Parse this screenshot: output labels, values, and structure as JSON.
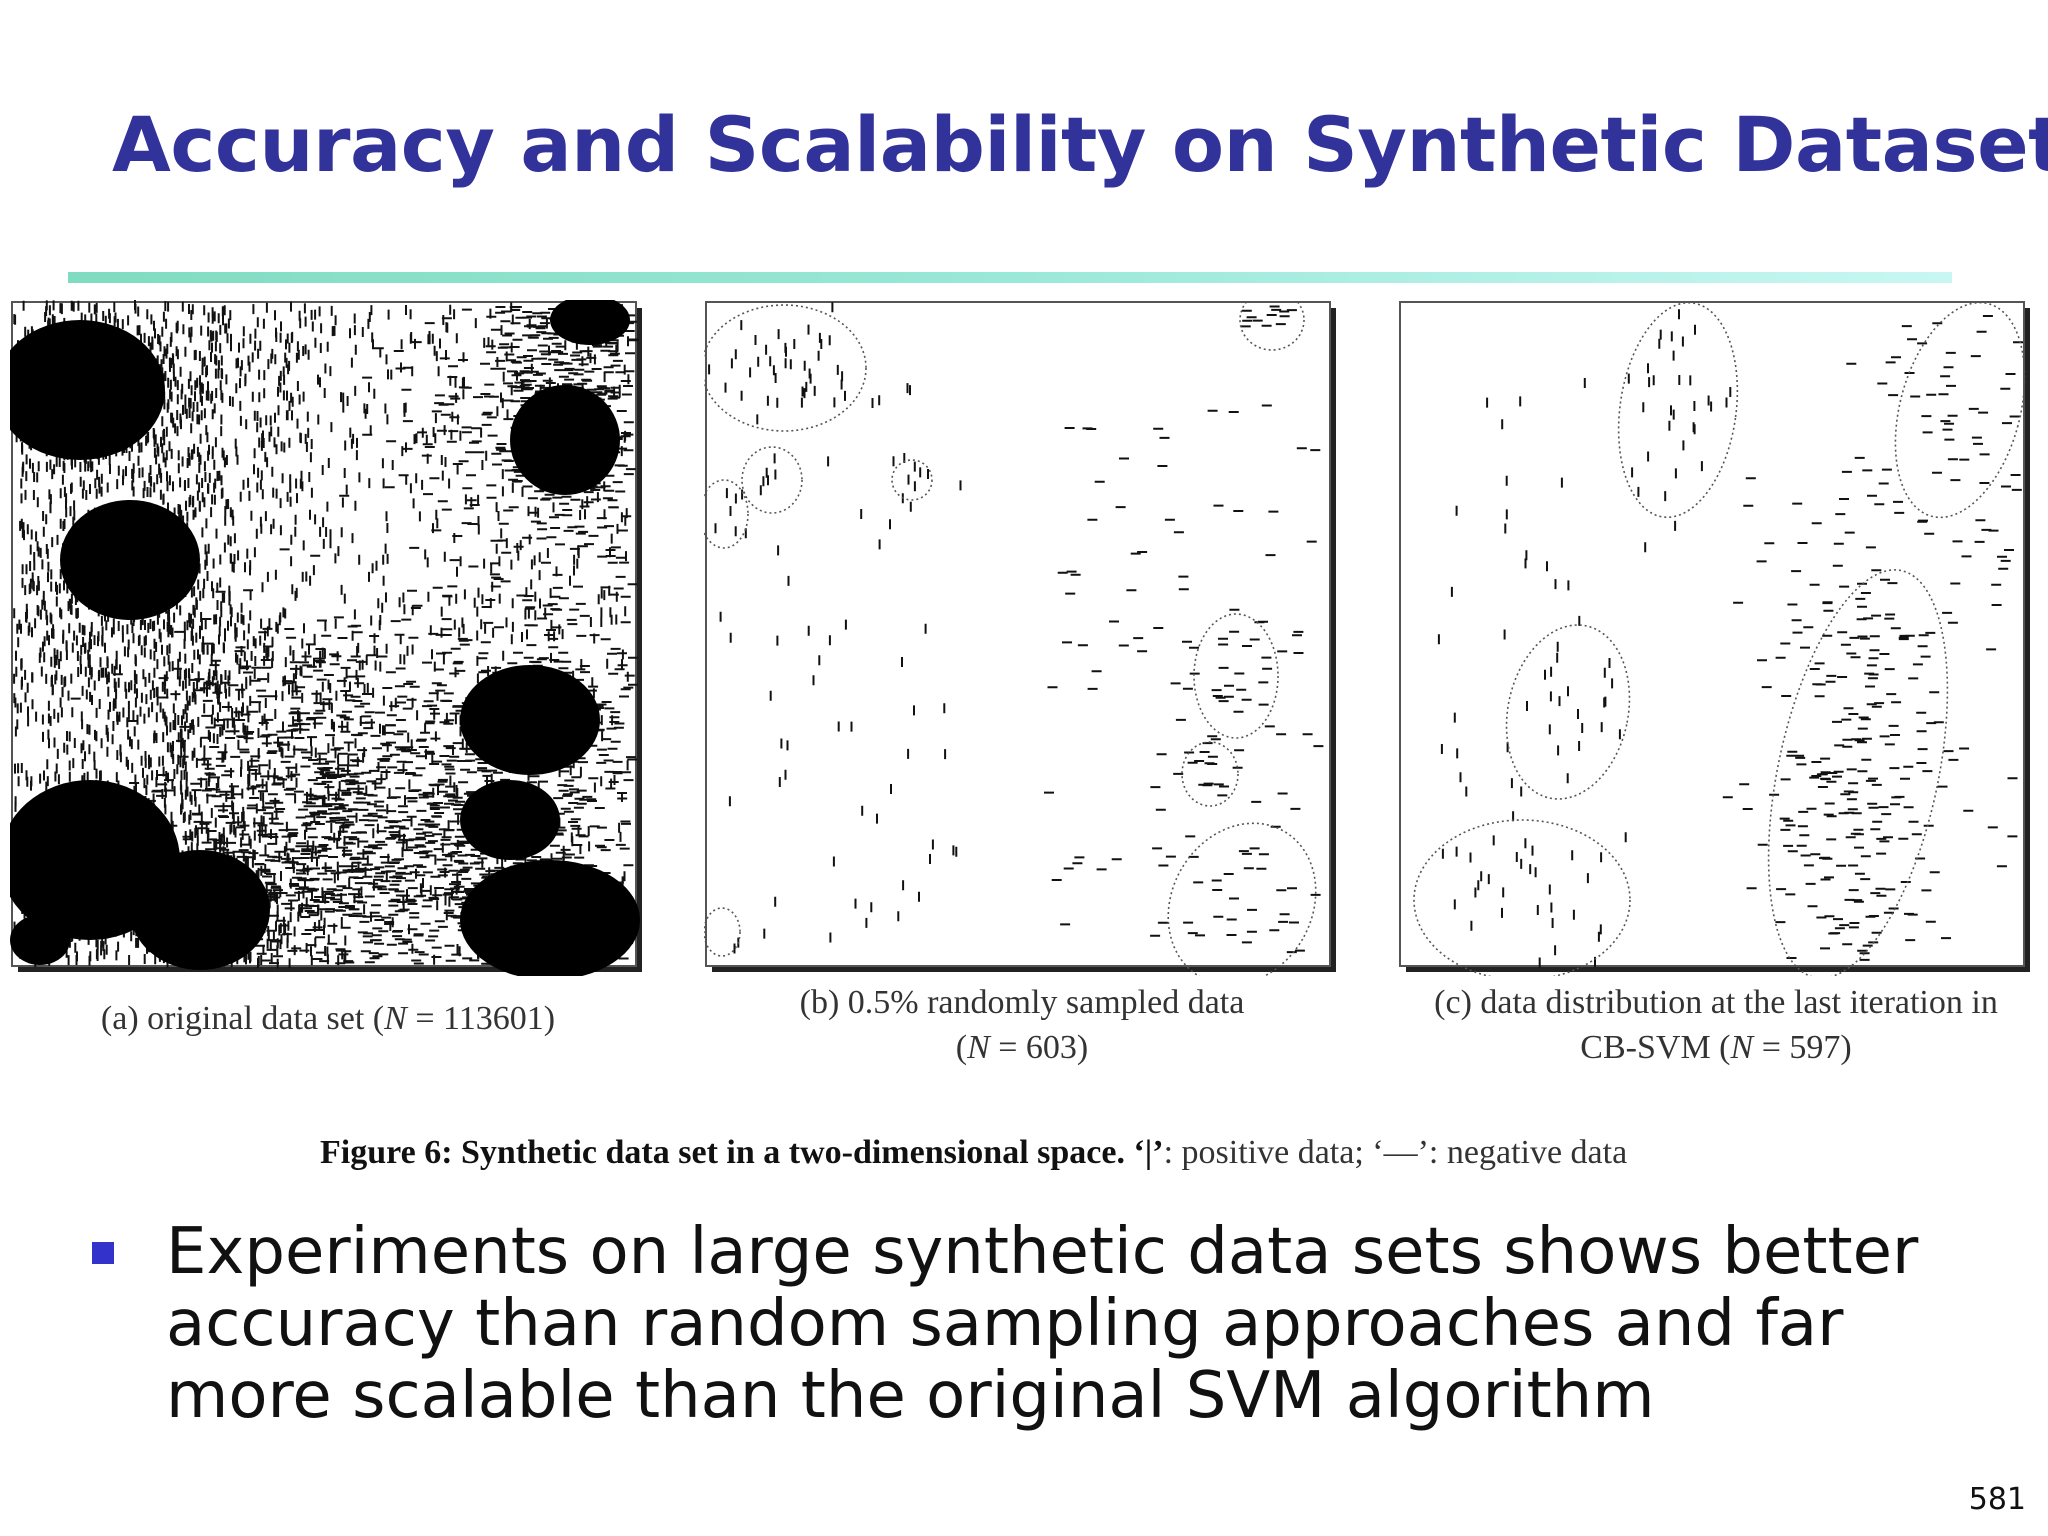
{
  "slide": {
    "title": "Accuracy and Scalability on Synthetic Dataset",
    "page_number": "581"
  },
  "figure": {
    "panels": [
      {
        "id": "a",
        "caption_prefix": "(a) original data set (",
        "caption_n": "N",
        "caption_suffix": " = 113601)"
      },
      {
        "id": "b",
        "caption_line1": "(b) 0.5% randomly sampled data",
        "caption_line2_open": "(",
        "caption_n": "N",
        "caption_line2_rest": " = 603)"
      },
      {
        "id": "c",
        "caption_line1": "(c) data distribution at the last iteration in",
        "caption_line2_pre": "CB-SVM (",
        "caption_n": "N",
        "caption_line2_rest": " = 597)"
      }
    ],
    "caption_bold": "Figure 6: Synthetic data set in a two-dimensional space. ‘|’",
    "caption_rest": ": positive data; ‘—’: negative data"
  },
  "bullets": [
    "Experiments on large synthetic data sets shows better accuracy than random sampling approaches and far more scalable than the original SVM algorithm"
  ],
  "colors": {
    "title": "#32329b",
    "bullet": "#3333cc",
    "rule_start": "#7fdcc0",
    "rule_end": "#c8f7f2"
  }
}
